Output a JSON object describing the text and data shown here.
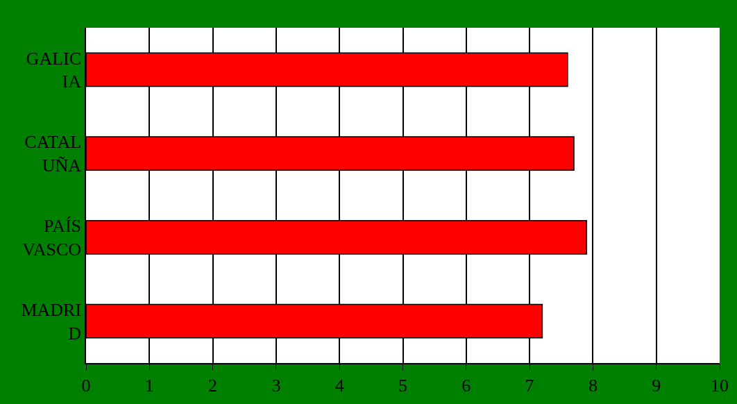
{
  "chart_data": {
    "type": "bar",
    "orientation": "horizontal",
    "categories": [
      "GALICIA",
      "CATALUÑA",
      "PAÍS VASCO",
      "MADRID"
    ],
    "values": [
      7.6,
      7.7,
      7.9,
      7.2
    ],
    "color": "#ff0000",
    "xlim": [
      0,
      10
    ],
    "xticks": [
      0,
      1,
      2,
      3,
      4,
      5,
      6,
      7,
      8,
      9,
      10
    ],
    "grid": "x",
    "legend": false
  }
}
